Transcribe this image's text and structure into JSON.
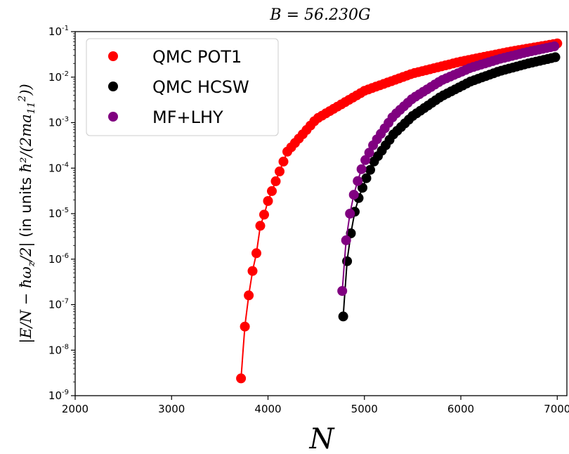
{
  "chart_data": {
    "type": "scatter",
    "title": "B = 56.230G",
    "xlabel": "N",
    "ylabel": "|E/N − ħω_z/2| (in units ħ²/(2ma₁₁²))",
    "ylabel_math_left": "|E/N − ħω",
    "ylabel_math_sub": "z",
    "ylabel_math_mid": "/2| ",
    "ylabel_text": "(in units ",
    "ylabel_math_right": "ħ²/(2ma",
    "ylabel_math_sub2": "11",
    "ylabel_math_sup2": "2",
    "ylabel_math_end": "))",
    "x_scale": "linear",
    "y_scale": "log",
    "xlim": [
      2000,
      7100
    ],
    "ylim_exp": [
      -9,
      -1
    ],
    "x_ticks": [
      2000,
      3000,
      4000,
      5000,
      6000,
      7000
    ],
    "y_ticks_exp": [
      -9,
      -8,
      -7,
      -6,
      -5,
      -4,
      -3,
      -2,
      -1
    ],
    "y_tick_base": "10",
    "legend_position": "upper-left",
    "grid": false,
    "series": [
      {
        "name": "QMC POT1",
        "color": "#ff0000",
        "n_start": 3720,
        "n_end": 7000,
        "n_step": 40,
        "points": [
          [
            3720,
            2.4e-09
          ],
          [
            3760,
            3.3e-08
          ],
          [
            3800,
            1.6e-07
          ],
          [
            3840,
            5.5e-07
          ],
          [
            3880,
            1.35e-06
          ],
          [
            3920,
            5.4e-06
          ],
          [
            3960,
            9.5e-06
          ],
          [
            4000,
            1.9e-05
          ],
          [
            4200,
            0.00023
          ],
          [
            4500,
            0.0012
          ],
          [
            5000,
            0.005
          ],
          [
            5500,
            0.012
          ],
          [
            6000,
            0.022
          ],
          [
            6500,
            0.036
          ],
          [
            7000,
            0.055
          ]
        ]
      },
      {
        "name": "QMC HCSW",
        "color": "#000000",
        "n_start": 4780,
        "n_end": 7000,
        "n_step": 40,
        "points": [
          [
            4780,
            5.5e-08
          ],
          [
            4820,
            9e-07
          ],
          [
            4860,
            3.7e-06
          ],
          [
            4900,
            1.1e-05
          ],
          [
            4940,
            2.2e-05
          ],
          [
            4980,
            3.7e-05
          ],
          [
            5020,
            6e-05
          ],
          [
            5100,
            0.00014
          ],
          [
            5300,
            0.00055
          ],
          [
            5500,
            0.0014
          ],
          [
            5800,
            0.0038
          ],
          [
            6100,
            0.008
          ],
          [
            6400,
            0.0135
          ],
          [
            6700,
            0.02
          ],
          [
            7000,
            0.028
          ]
        ]
      },
      {
        "name": "MF+LHY",
        "color": "#800080",
        "n_start": 4770,
        "n_end": 7000,
        "n_step": 40,
        "points": [
          [
            4770,
            2e-07
          ],
          [
            4810,
            2.6e-06
          ],
          [
            4850,
            1e-05
          ],
          [
            4890,
            2.6e-05
          ],
          [
            4930,
            5.2e-05
          ],
          [
            4970,
            9.5e-05
          ],
          [
            5010,
            0.00015
          ],
          [
            5100,
            0.00035
          ],
          [
            5300,
            0.0014
          ],
          [
            5500,
            0.0034
          ],
          [
            5800,
            0.0085
          ],
          [
            6100,
            0.016
          ],
          [
            6400,
            0.025
          ],
          [
            6700,
            0.036
          ],
          [
            7000,
            0.049
          ]
        ]
      }
    ]
  }
}
